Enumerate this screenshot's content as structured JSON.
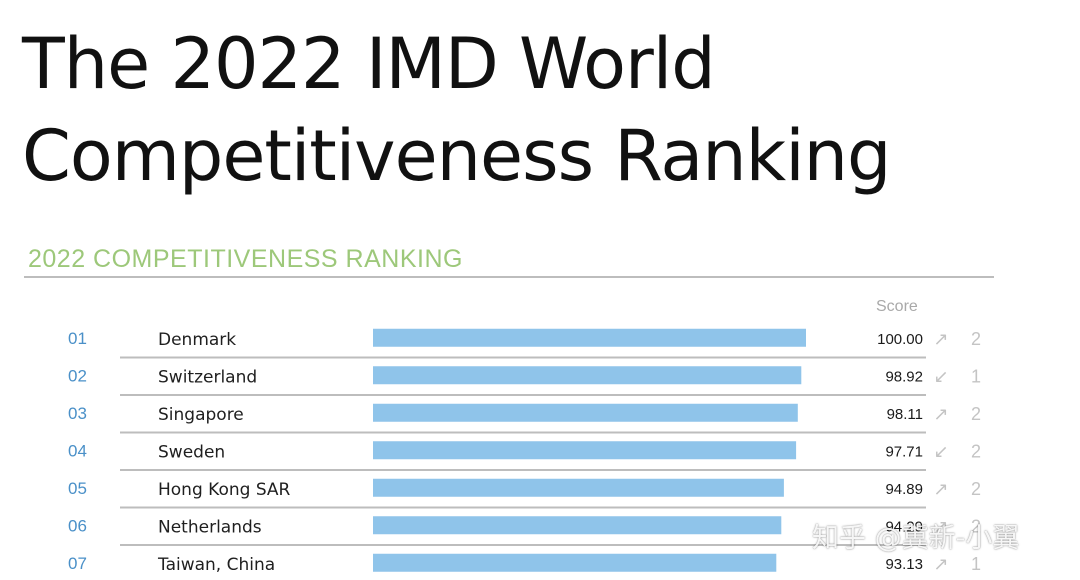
{
  "page": {
    "title_line1": "The 2022 IMD World",
    "title_line2": "Competitiveness Ranking",
    "subtitle": "2022 COMPETITIVENESS RANKING",
    "score_header": "Score",
    "watermark": "知乎 @冀新-小翼"
  },
  "colors": {
    "bar": "#8fc4ea",
    "rank": "#4a90c8",
    "subtitle": "#9dc87a",
    "arrow": "#c4c4c4",
    "rule": "#bdbdbd"
  },
  "chart_data": {
    "type": "bar",
    "orientation": "horizontal",
    "title": "2022 COMPETITIVENESS RANKING",
    "value_label": "Score",
    "xlim": [
      0,
      100
    ],
    "rows": [
      {
        "rank": "01",
        "country": "Denmark",
        "score": 100.0,
        "score_label": "100.00",
        "trend": "up",
        "trend_icon": "↗",
        "change": "2"
      },
      {
        "rank": "02",
        "country": "Switzerland",
        "score": 98.92,
        "score_label": "98.92",
        "trend": "down",
        "trend_icon": "↙",
        "change": "1"
      },
      {
        "rank": "03",
        "country": "Singapore",
        "score": 98.11,
        "score_label": "98.11",
        "trend": "up",
        "trend_icon": "↗",
        "change": "2"
      },
      {
        "rank": "04",
        "country": "Sweden",
        "score": 97.71,
        "score_label": "97.71",
        "trend": "down",
        "trend_icon": "↙",
        "change": "2"
      },
      {
        "rank": "05",
        "country": "Hong Kong SAR",
        "score": 94.89,
        "score_label": "94.89",
        "trend": "up",
        "trend_icon": "↗",
        "change": "2"
      },
      {
        "rank": "06",
        "country": "Netherlands",
        "score": 94.29,
        "score_label": "94.29",
        "trend": "up",
        "trend_icon": "↗",
        "change": "2"
      },
      {
        "rank": "07",
        "country": "Taiwan, China",
        "score": 93.13,
        "score_label": "93.13",
        "trend": "up",
        "trend_icon": "↗",
        "change": "1"
      }
    ]
  }
}
